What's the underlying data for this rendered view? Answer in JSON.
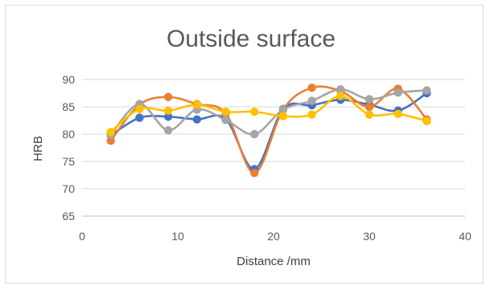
{
  "chart_data": {
    "type": "line",
    "title": "Outside surface",
    "xlabel": "Distance /mm",
    "ylabel": "HRB",
    "xlim": [
      0,
      40
    ],
    "ylim": [
      65,
      90
    ],
    "xticks": [
      "0",
      "10",
      "20",
      "30",
      "40"
    ],
    "yticks": [
      "65",
      "70",
      "75",
      "80",
      "85",
      "90"
    ],
    "grid": true,
    "smooth": true,
    "x": [
      3,
      6,
      9,
      12,
      15,
      18,
      21,
      24,
      27,
      30,
      33,
      36
    ],
    "series": [
      {
        "color": "#4472C4",
        "values": [
          79.8,
          83.0,
          83.2,
          82.7,
          82.8,
          73.6,
          84.6,
          85.3,
          86.3,
          85.4,
          84.3,
          87.5
        ]
      },
      {
        "color": "#ED7D31",
        "values": [
          78.8,
          85.4,
          86.8,
          85.5,
          83.8,
          72.9,
          84.5,
          88.5,
          87.9,
          85.0,
          88.3,
          82.7
        ]
      },
      {
        "color": "#A5A5A5",
        "values": [
          79.9,
          85.5,
          80.7,
          84.5,
          82.6,
          80.0,
          84.5,
          86.1,
          88.2,
          86.4,
          87.6,
          88.0
        ]
      },
      {
        "color": "#FFC000",
        "values": [
          80.4,
          84.6,
          84.3,
          85.4,
          84.1,
          84.1,
          83.3,
          83.6,
          87.0,
          83.6,
          83.7,
          82.4
        ]
      }
    ]
  }
}
